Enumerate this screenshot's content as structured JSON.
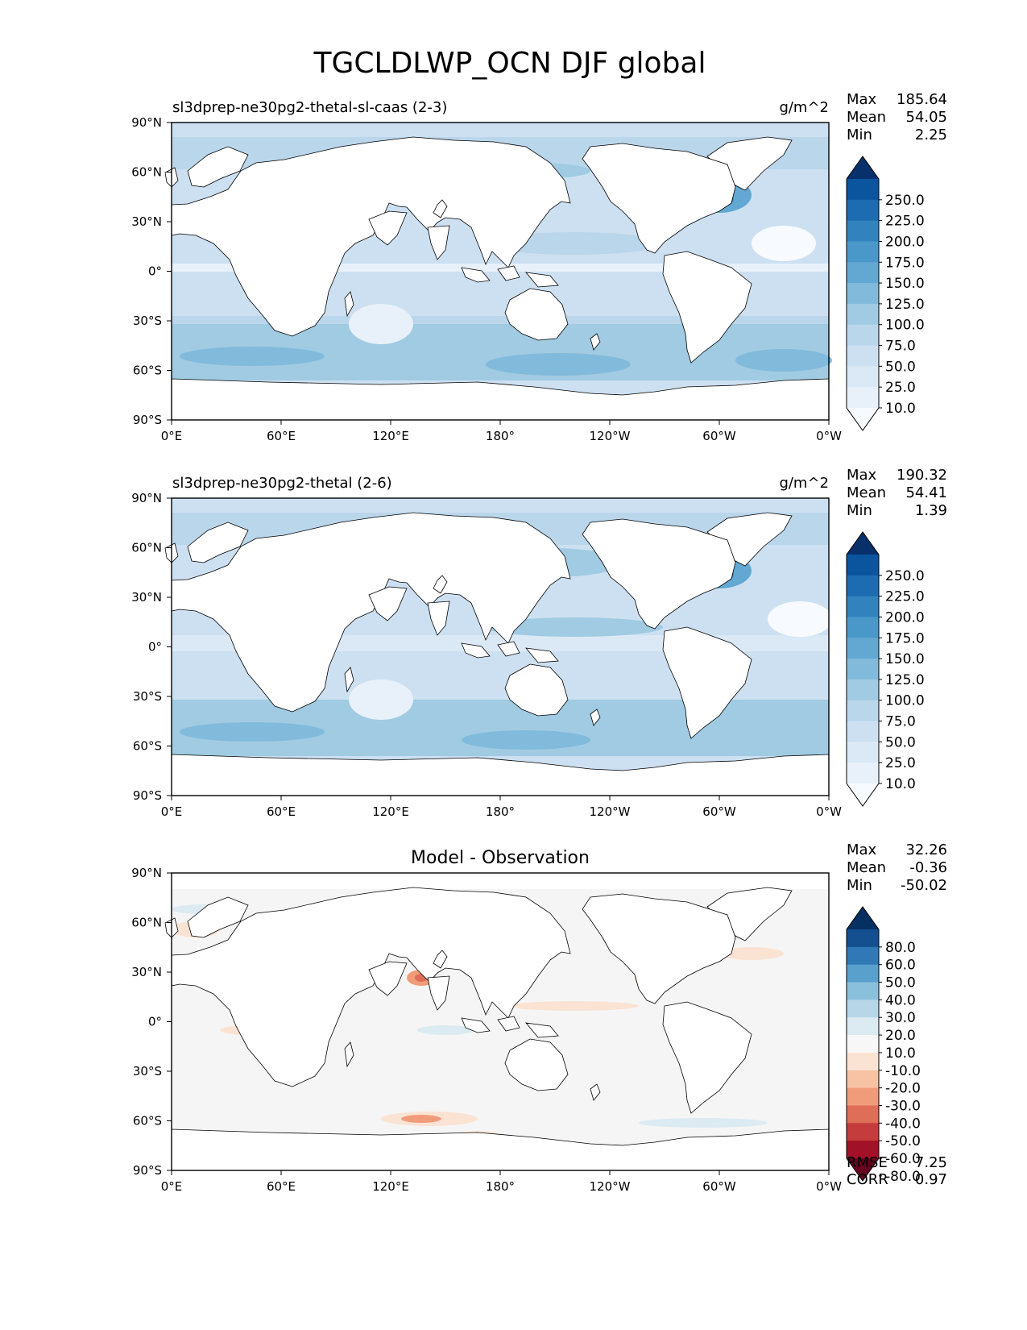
{
  "title": "TGCLDLWP_OCN DJF global",
  "lon_ticks": [
    "0°E",
    "60°E",
    "120°E",
    "180°",
    "120°W",
    "60°W",
    "0°W"
  ],
  "lat_ticks": [
    "90°N",
    "60°N",
    "30°N",
    "0°",
    "30°S",
    "60°S",
    "90°S"
  ],
  "panels": [
    {
      "left_title": "sl3dprep-ne30pg2-thetal-sl-caas (2-3)",
      "center_title": "",
      "units": "g/m^2",
      "stats": [
        {
          "label": "Max",
          "value": "185.64"
        },
        {
          "label": "Mean",
          "value": "54.05"
        },
        {
          "label": "Min",
          "value": "2.25"
        }
      ],
      "colorbar_ticks": [
        "250.0",
        "225.0",
        "200.0",
        "175.0",
        "150.0",
        "125.0",
        "100.0",
        "75.0",
        "50.0",
        "25.0",
        "10.0"
      ],
      "colorbar_colors": [
        "#f7fbff",
        "#e8f1fa",
        "#dbe9f6",
        "#cde0f1",
        "#bad6eb",
        "#a0cbe2",
        "#82badb",
        "#63a8d3",
        "#4a98c9",
        "#3282be",
        "#1d6cb1",
        "#0b559f",
        "#08306b"
      ],
      "footer": []
    },
    {
      "left_title": "sl3dprep-ne30pg2-thetal (2-6)",
      "center_title": "",
      "units": "g/m^2",
      "stats": [
        {
          "label": "Max",
          "value": "190.32"
        },
        {
          "label": "Mean",
          "value": "54.41"
        },
        {
          "label": "Min",
          "value": "1.39"
        }
      ],
      "colorbar_ticks": [
        "250.0",
        "225.0",
        "200.0",
        "175.0",
        "150.0",
        "125.0",
        "100.0",
        "75.0",
        "50.0",
        "25.0",
        "10.0"
      ],
      "colorbar_colors": [
        "#f7fbff",
        "#e8f1fa",
        "#dbe9f6",
        "#cde0f1",
        "#bad6eb",
        "#a0cbe2",
        "#82badb",
        "#63a8d3",
        "#4a98c9",
        "#3282be",
        "#1d6cb1",
        "#0b559f",
        "#08306b"
      ],
      "footer": []
    },
    {
      "left_title": "",
      "center_title": "Model - Observation",
      "units": "",
      "stats": [
        {
          "label": "Max",
          "value": "32.26"
        },
        {
          "label": "Mean",
          "value": "-0.36"
        },
        {
          "label": "Min",
          "value": "-50.02"
        }
      ],
      "colorbar_ticks": [
        "80.0",
        "60.0",
        "50.0",
        "40.0",
        "30.0",
        "20.0",
        "10.0",
        "-10.0",
        "-20.0",
        "-30.0",
        "-40.0",
        "-50.0",
        "-60.0",
        "-80.0"
      ],
      "colorbar_colors": [
        "#67001f",
        "#a11228",
        "#c43c3c",
        "#de6e58",
        "#f09c7b",
        "#f8c2a4",
        "#fbe3d4",
        "#f7f7f7",
        "#dceaf2",
        "#b7d7e8",
        "#8bc0dd",
        "#5aa0cd",
        "#3079b6",
        "#14508f",
        "#053061"
      ],
      "footer": [
        {
          "label": "RMSE",
          "value": "7.25"
        },
        {
          "label": "CORR",
          "value": "0.97"
        }
      ]
    }
  ],
  "colors": {
    "ocean_base_abs": "#cde0f1",
    "ocean_base_diff": "#f5f5f5",
    "land": "#ffffff",
    "coast": "#000000"
  }
}
